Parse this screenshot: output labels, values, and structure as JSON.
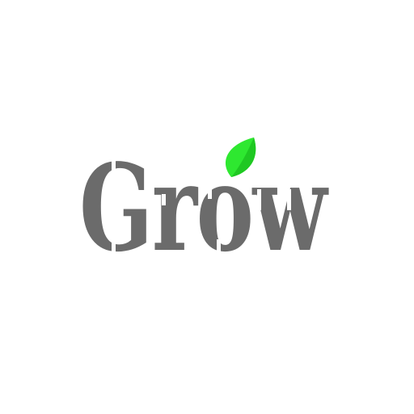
{
  "logo": {
    "text": "Grow",
    "text_color": "#6b6b6b",
    "leaf_color_light": "#2ee830",
    "leaf_color_dark": "#1fc822",
    "stencil_color": "#ffffff",
    "leaf_icon": "leaf-icon"
  }
}
